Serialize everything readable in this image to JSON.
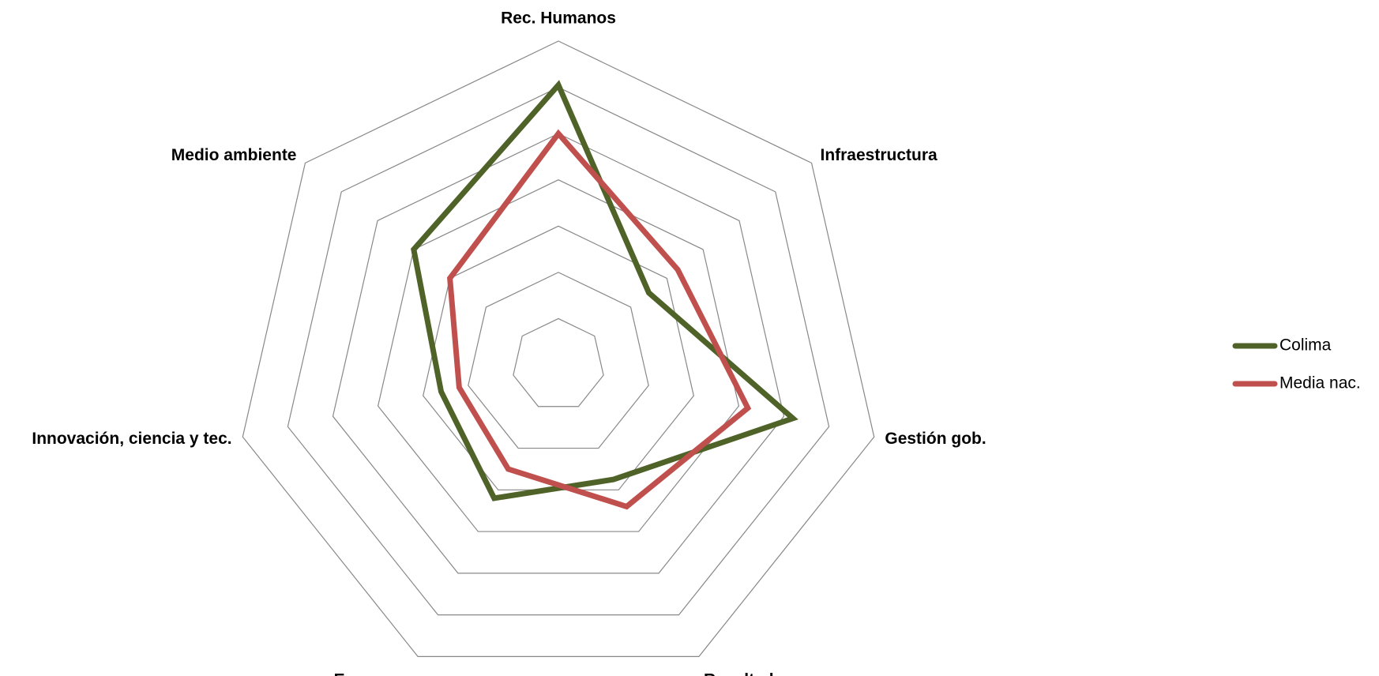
{
  "chart_data": {
    "type": "radar",
    "categories": [
      "Rec. Humanos",
      "Infraestructura",
      "Gestión gob.",
      "Resultados econ.",
      "Empresas",
      "Innovación, ciencia y tec.",
      "Medio ambiente"
    ],
    "series": [
      {
        "name": "Colima",
        "color": "#4f6228",
        "values": [
          6.05,
          2.5,
          5.2,
          2.75,
          3.2,
          2.6,
          4.0
        ]
      },
      {
        "name": "Media nac.",
        "color": "#c0504d",
        "values": [
          5.0,
          3.3,
          4.2,
          3.4,
          2.5,
          2.2,
          3.0
        ]
      }
    ],
    "ylim": [
      0,
      7
    ],
    "yticks": [
      1,
      2,
      3,
      4,
      5,
      6,
      7
    ],
    "grid": true,
    "legend": "right"
  }
}
